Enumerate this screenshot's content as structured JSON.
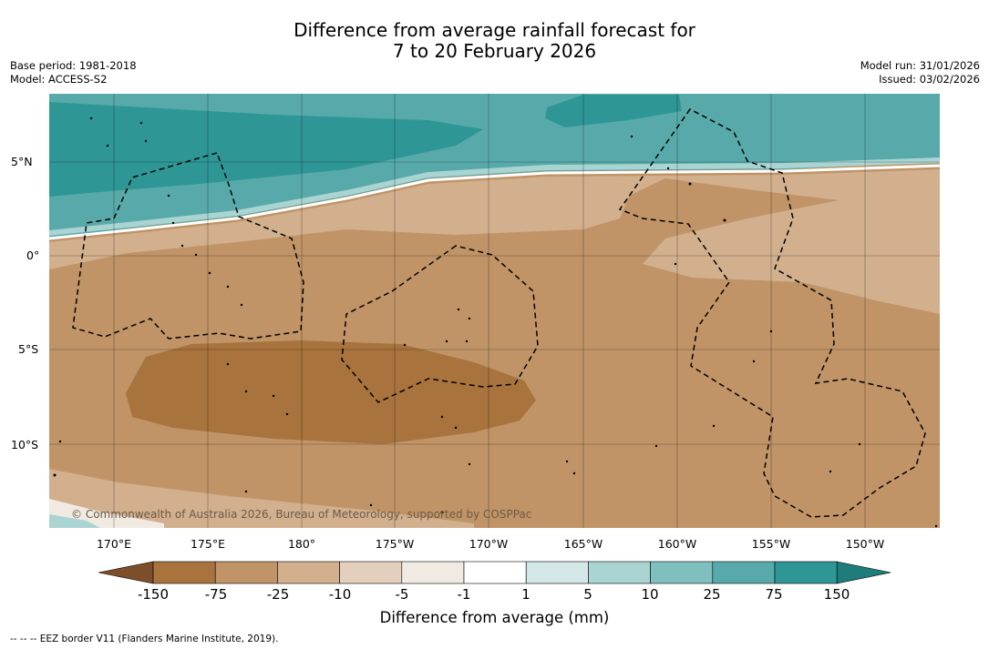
{
  "title": {
    "line1": "Difference from average rainfall forecast for",
    "line2": "7 to 20 February 2026"
  },
  "meta_left": {
    "base_period": "Base period: 1981-2018",
    "model": "Model: ACCESS-S2"
  },
  "meta_right": {
    "model_run": "Model run: 31/01/2026",
    "issued": "Issued: 03/02/2026"
  },
  "map": {
    "lat_labels": [
      "5°N",
      "0°",
      "5°S",
      "10°S"
    ],
    "lon_labels": [
      "170°E",
      "175°E",
      "180°",
      "175°W",
      "170°W",
      "165°W",
      "160°W",
      "155°W",
      "150°W"
    ],
    "credit": "© Commonwealth of Australia 2026, Bureau of Meteorology, supported by COSPPac"
  },
  "colorbar": {
    "colors": [
      "#7c4f2a",
      "#a8733d",
      "#c09467",
      "#d2b08e",
      "#e2d0bd",
      "#f1eae3",
      "#ffffff",
      "#d3e8e6",
      "#a9d4d2",
      "#7fbfbd",
      "#58aaaa",
      "#2f9696",
      "#1e7c7a"
    ],
    "labels": [
      "-150",
      "-75",
      "-25",
      "-10",
      "-5",
      "-1",
      "1",
      "5",
      "10",
      "25",
      "75",
      "150"
    ],
    "title": "Difference from average (mm)"
  },
  "footnote": "--  --  -- EEZ border V11 (Flanders Marine Institute, 2019)."
}
